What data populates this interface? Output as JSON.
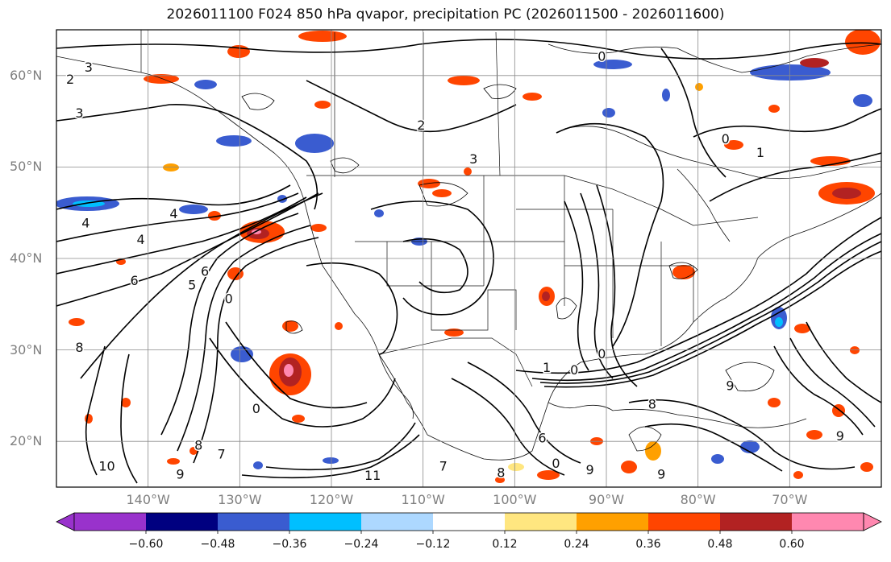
{
  "title": "2026011100 F024 850 hPa qvapor, precipitation PC (2026011500 - 2026011600)",
  "map": {
    "projection": "equirectangular",
    "lon_range": [
      -150,
      -60
    ],
    "lat_range": [
      15,
      65
    ],
    "gridlines": true,
    "lat_ticks": [
      {
        "value": 60,
        "label": "60°N"
      },
      {
        "value": 50,
        "label": "50°N"
      },
      {
        "value": 40,
        "label": "40°N"
      },
      {
        "value": 30,
        "label": "30°N"
      },
      {
        "value": 20,
        "label": "20°N"
      }
    ],
    "lon_ticks": [
      {
        "value": -140,
        "label": "140°W"
      },
      {
        "value": -130,
        "label": "130°W"
      },
      {
        "value": -120,
        "label": "120°W"
      },
      {
        "value": -110,
        "label": "110°W"
      },
      {
        "value": -100,
        "label": "100°W"
      },
      {
        "value": -90,
        "label": "90°W"
      },
      {
        "value": -80,
        "label": "80°W"
      },
      {
        "value": -70,
        "label": "70°W"
      }
    ],
    "contour_labels": [
      {
        "text": "3",
        "lon": -146.5,
        "lat": 60.8
      },
      {
        "text": "2",
        "lon": -148.5,
        "lat": 59.5
      },
      {
        "text": "3",
        "lon": -147.5,
        "lat": 55.8
      },
      {
        "text": "4",
        "lon": -146.8,
        "lat": 43.8
      },
      {
        "text": "4",
        "lon": -137.2,
        "lat": 44.8
      },
      {
        "text": "4",
        "lon": -140.8,
        "lat": 42.0
      },
      {
        "text": "6",
        "lon": -141.5,
        "lat": 37.5
      },
      {
        "text": "8",
        "lon": -147.5,
        "lat": 30.2
      },
      {
        "text": "10",
        "lon": -144.5,
        "lat": 17.2
      },
      {
        "text": "9",
        "lon": -136.5,
        "lat": 16.3
      },
      {
        "text": "8",
        "lon": -134.5,
        "lat": 19.5
      },
      {
        "text": "7",
        "lon": -132.0,
        "lat": 18.5
      },
      {
        "text": "6",
        "lon": -133.8,
        "lat": 38.5
      },
      {
        "text": "5",
        "lon": -135.2,
        "lat": 37.0
      },
      {
        "text": "0",
        "lon": -131.2,
        "lat": 35.5
      },
      {
        "text": "0",
        "lon": -128.2,
        "lat": 23.5
      },
      {
        "text": "2",
        "lon": -110.2,
        "lat": 54.5
      },
      {
        "text": "3",
        "lon": -104.5,
        "lat": 50.8
      },
      {
        "text": "0",
        "lon": -90.5,
        "lat": 62.0
      },
      {
        "text": "0",
        "lon": -77.0,
        "lat": 53.0
      },
      {
        "text": "1",
        "lon": -73.2,
        "lat": 51.5
      },
      {
        "text": "0",
        "lon": -90.5,
        "lat": 29.5
      },
      {
        "text": "1",
        "lon": -96.5,
        "lat": 28.0
      },
      {
        "text": "0",
        "lon": -93.5,
        "lat": 27.7
      },
      {
        "text": "8",
        "lon": -85.0,
        "lat": 24.0
      },
      {
        "text": "9",
        "lon": -76.5,
        "lat": 26.0
      },
      {
        "text": "9",
        "lon": -64.5,
        "lat": 20.5
      },
      {
        "text": "6",
        "lon": -97.0,
        "lat": 20.3
      },
      {
        "text": "0",
        "lon": -95.5,
        "lat": 17.5
      },
      {
        "text": "9",
        "lon": -91.8,
        "lat": 16.8
      },
      {
        "text": "9",
        "lon": -84.0,
        "lat": 16.3
      },
      {
        "text": "11",
        "lon": -115.5,
        "lat": 16.2
      },
      {
        "text": "7",
        "lon": -107.8,
        "lat": 17.2
      },
      {
        "text": "8",
        "lon": -101.5,
        "lat": 16.5
      }
    ]
  },
  "colorbar": {
    "levels": [
      "-0.60",
      "-0.48",
      "-0.36",
      "-0.24",
      "-0.12",
      "0.12",
      "0.24",
      "0.36",
      "0.48",
      "0.60"
    ],
    "colors": [
      "#9932CC",
      "#000080",
      "#3A5CD0",
      "#00BFFF",
      "#ADD8FF",
      "#FFFFFF",
      "#FFE680",
      "#FFA000",
      "#FF4500",
      "#B22222",
      "#FF88B0"
    ],
    "extend": "both"
  }
}
